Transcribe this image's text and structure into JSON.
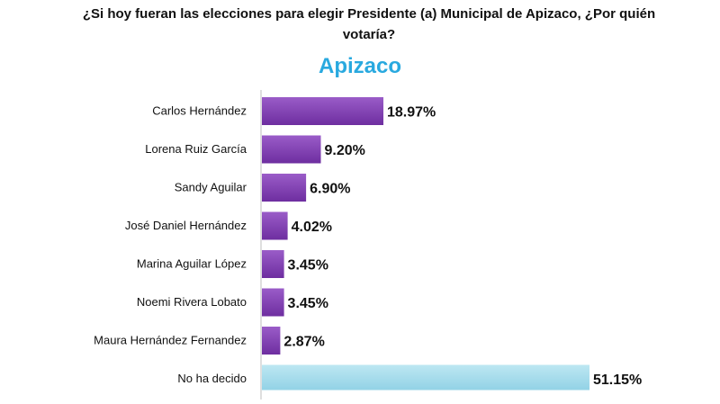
{
  "chart_data": {
    "type": "bar",
    "orientation": "horizontal",
    "title": "¿Si hoy fueran las elecciones para elegir Presidente (a) Municipal de Apizaco, ¿Por quién votaría?",
    "subtitle": "Apizaco",
    "categories": [
      "Carlos Hernández",
      "Lorena Ruiz García",
      "Sandy Aguilar",
      "José Daniel Hernández",
      "Marina Aguilar López",
      "Noemi Rivera Lobato",
      "Maura Hernández Fernandez",
      "No ha decido"
    ],
    "values": [
      18.97,
      9.2,
      6.9,
      4.02,
      3.45,
      3.45,
      2.87,
      51.15
    ],
    "value_labels": [
      "18.97%",
      "9.20%",
      "6.90%",
      "4.02%",
      "3.45%",
      "3.45%",
      "2.87%",
      "51.15%"
    ],
    "colors": [
      "#8040b0",
      "#8040b0",
      "#8040b0",
      "#8040b0",
      "#8040b0",
      "#8040b0",
      "#8040b0",
      "#a6dcea"
    ],
    "xlim": [
      0,
      51.15
    ],
    "grid": false,
    "legend": "none"
  }
}
